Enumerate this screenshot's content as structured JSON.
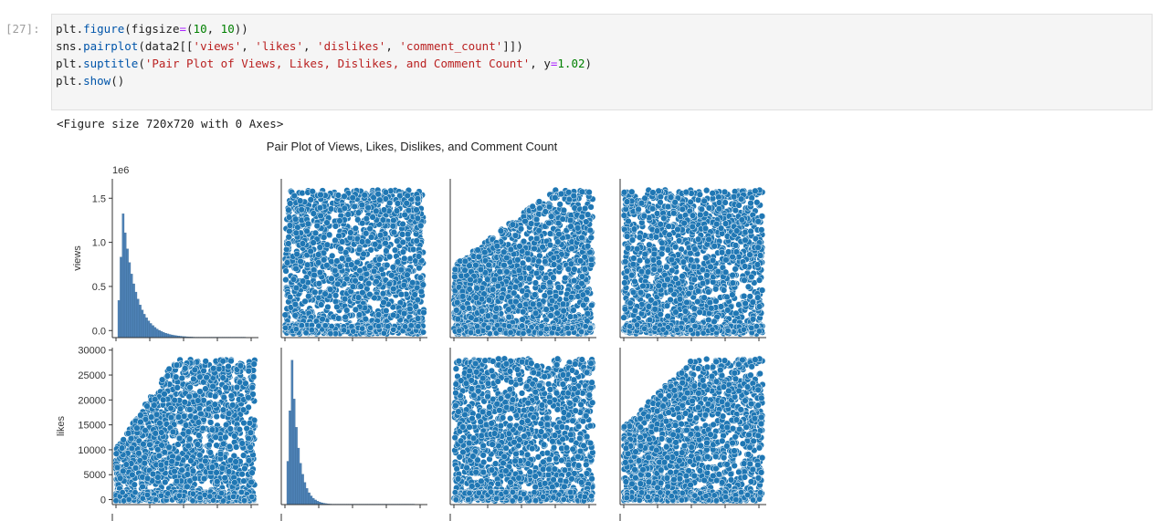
{
  "cell": {
    "prompt": "[27]:",
    "code_lines": [
      [
        {
          "t": "plt.",
          "c": ""
        },
        {
          "t": "figure",
          "c": "kw-fn"
        },
        {
          "t": "(figsize",
          "c": ""
        },
        {
          "t": "=",
          "c": "op"
        },
        {
          "t": "(",
          "c": ""
        },
        {
          "t": "10",
          "c": "num"
        },
        {
          "t": ", ",
          "c": ""
        },
        {
          "t": "10",
          "c": "num"
        },
        {
          "t": "))",
          "c": ""
        }
      ],
      [
        {
          "t": "sns.",
          "c": ""
        },
        {
          "t": "pairplot",
          "c": "kw-fn"
        },
        {
          "t": "(data2[[",
          "c": ""
        },
        {
          "t": "'views'",
          "c": "str"
        },
        {
          "t": ", ",
          "c": ""
        },
        {
          "t": "'likes'",
          "c": "str"
        },
        {
          "t": ", ",
          "c": ""
        },
        {
          "t": "'dislikes'",
          "c": "str"
        },
        {
          "t": ", ",
          "c": ""
        },
        {
          "t": "'comment_count'",
          "c": "str"
        },
        {
          "t": "]])",
          "c": ""
        }
      ],
      [
        {
          "t": "plt.",
          "c": ""
        },
        {
          "t": "suptitle",
          "c": "kw-fn"
        },
        {
          "t": "(",
          "c": ""
        },
        {
          "t": "'Pair Plot of Views, Likes, Dislikes, and Comment Count'",
          "c": "str"
        },
        {
          "t": ", y",
          "c": ""
        },
        {
          "t": "=",
          "c": "op"
        },
        {
          "t": "1.02",
          "c": "num"
        },
        {
          "t": ")",
          "c": ""
        }
      ],
      [
        {
          "t": "plt.",
          "c": ""
        },
        {
          "t": "show",
          "c": "kw-fn"
        },
        {
          "t": "()",
          "c": ""
        }
      ]
    ],
    "output_text": "<Figure size 720x720 with 0 Axes>"
  },
  "chart_data": {
    "type": "scatter",
    "title": "Pair Plot of Views, Likes, Dislikes, and Comment Count",
    "variables": [
      "views",
      "likes",
      "dislikes",
      "comment_count"
    ],
    "color": "#1f77b4",
    "visible_rows": [
      {
        "ylabel": "views",
        "offset_label": "1e6",
        "yticks": [
          "0.0",
          "0.5",
          "1.0",
          "1.5"
        ],
        "ytick_values": [
          0,
          0.5,
          1.0,
          1.5
        ],
        "ylim": [
          -0.08,
          1.72
        ]
      },
      {
        "ylabel": "likes",
        "offset_label": "",
        "yticks": [
          "0",
          "5000",
          "10000",
          "15000",
          "20000",
          "25000",
          "30000"
        ],
        "ytick_values": [
          0,
          5000,
          10000,
          15000,
          20000,
          25000,
          30000
        ],
        "ylim": [
          -1000,
          30500
        ]
      }
    ]
  }
}
